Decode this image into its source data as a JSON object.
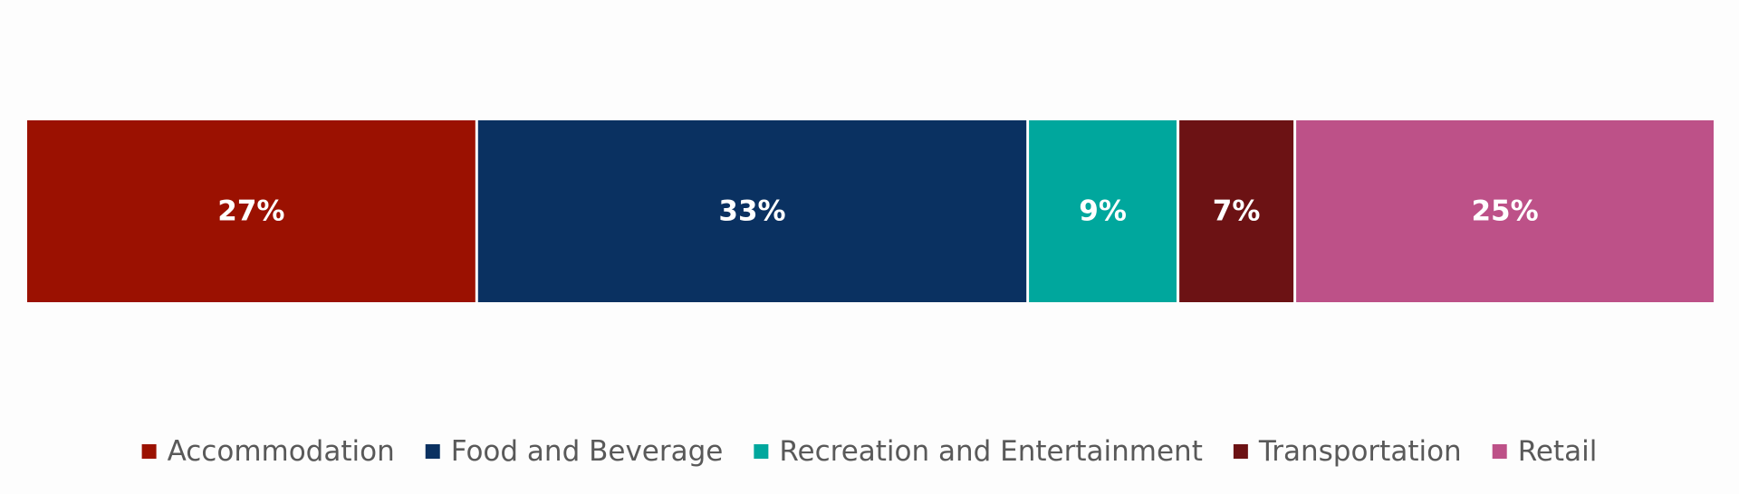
{
  "chart_data": {
    "type": "bar",
    "orientation": "horizontal",
    "stacked": true,
    "percent": true,
    "title": "",
    "xlabel": "",
    "ylabel": "",
    "grid": false,
    "legend_position": "bottom",
    "categories": [
      ""
    ],
    "series": [
      {
        "name": "Accommodation",
        "values": [
          27
        ],
        "label": "27%",
        "color": "#9b1101"
      },
      {
        "name": "Food and Beverage",
        "values": [
          33
        ],
        "label": "33%",
        "color": "#0a3161"
      },
      {
        "name": "Recreation and Entertainment",
        "values": [
          9
        ],
        "label": "9%",
        "color": "#00a79d"
      },
      {
        "name": "Transportation",
        "values": [
          7
        ],
        "label": "7%",
        "color": "#6c1214"
      },
      {
        "name": "Retail",
        "values": [
          25
        ],
        "label": "25%",
        "color": "#bd5188"
      }
    ]
  }
}
